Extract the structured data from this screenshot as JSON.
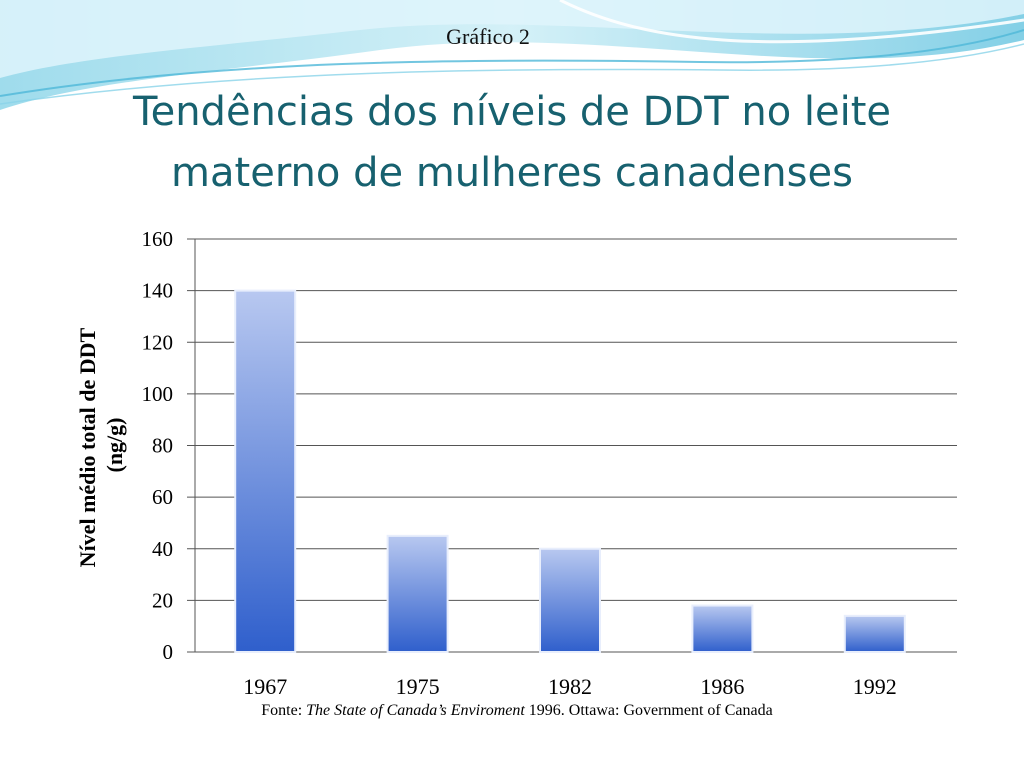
{
  "slide": {
    "caption": "Gráfico 2",
    "title_line1": "Tendências dos níveis de DDT no leite",
    "title_line2": "materno de mulheres canadenses"
  },
  "source": {
    "prefix": "Fonte: ",
    "italic": "The State of Canada’s Enviroment",
    "suffix": " 1996. Ottawa: Government of Canada"
  },
  "colors": {
    "title": "#17616f",
    "bar_top": "#b8c8f0",
    "bar_bottom": "#2f5fcc",
    "grid": "#555555"
  },
  "chart_data": {
    "type": "bar",
    "categories": [
      "1967",
      "1975",
      "1982",
      "1986",
      "1992"
    ],
    "values": [
      140,
      45,
      40,
      18,
      14
    ],
    "ylabel_line1": "Nível médio total de DDT",
    "ylabel_line2": "(ng/g)",
    "ylim": [
      0,
      160
    ],
    "yticks": [
      "0",
      "20",
      "40",
      "60",
      "80",
      "100",
      "120",
      "140",
      "160"
    ],
    "grid": true
  }
}
